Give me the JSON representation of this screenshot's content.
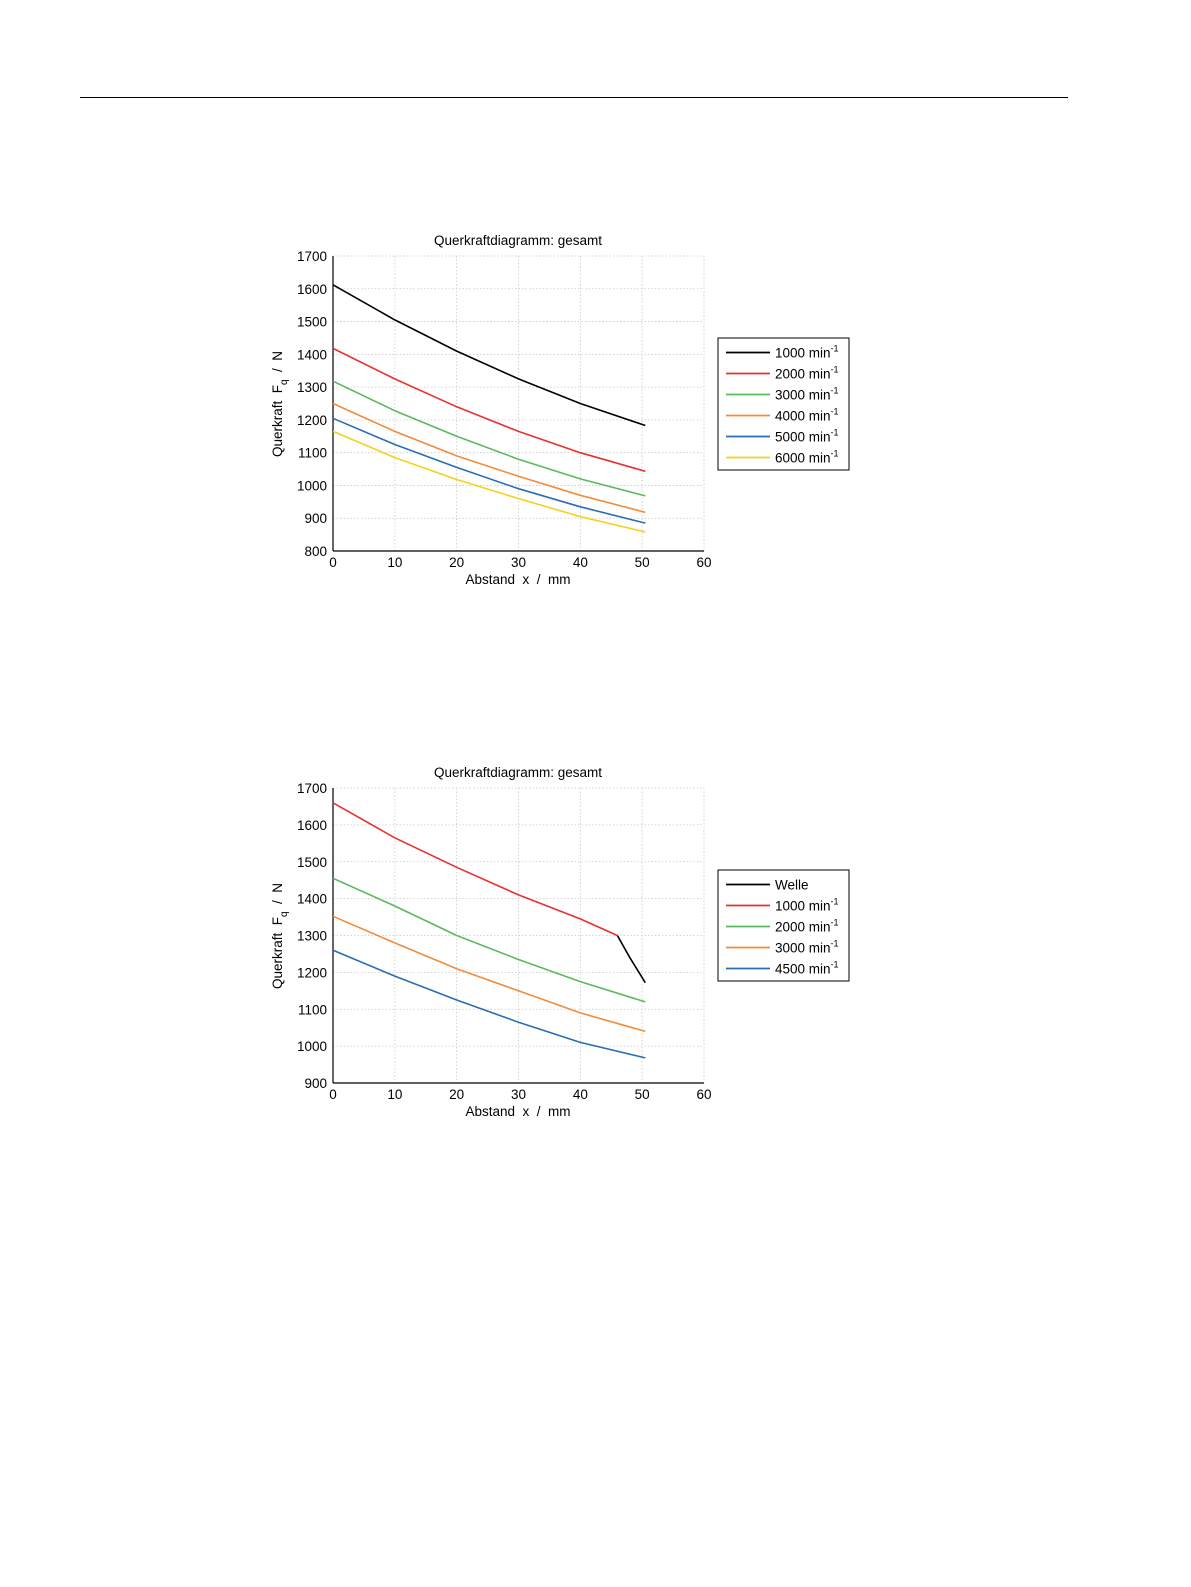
{
  "chart_data": [
    {
      "type": "line",
      "title": "Querkraftdiagramm: gesamt",
      "xlabel": "Abstand  x  /  mm",
      "ylabel_main": "Querkraft  F",
      "ylabel_sub": "q",
      "ylabel_unit": "  /  N",
      "xlim": [
        0,
        60
      ],
      "ylim": [
        800,
        1700
      ],
      "xticks": [
        0,
        10,
        20,
        30,
        40,
        50,
        60
      ],
      "yticks": [
        800,
        900,
        1000,
        1100,
        1200,
        1300,
        1400,
        1500,
        1600,
        1700
      ],
      "xtick_labels": [
        "0",
        "10",
        "20",
        "30",
        "40",
        "50",
        "60"
      ],
      "ytick_labels": [
        "800",
        "900",
        "1000",
        "1100",
        "1200",
        "1300",
        "1400",
        "1500",
        "1600",
        "1700"
      ],
      "grid": true,
      "legend_position": "right",
      "series": [
        {
          "name": "1000 min",
          "sup": "-1",
          "color": "#000000",
          "x": [
            0,
            10,
            20,
            30,
            40,
            50.5
          ],
          "y": [
            1612,
            1505,
            1410,
            1325,
            1250,
            1183
          ]
        },
        {
          "name": "2000 min",
          "sup": "-1",
          "color": "#e8302e",
          "x": [
            0,
            10,
            20,
            30,
            40,
            50.5
          ],
          "y": [
            1418,
            1325,
            1240,
            1165,
            1100,
            1043
          ]
        },
        {
          "name": "3000 min",
          "sup": "-1",
          "color": "#5cb85c",
          "x": [
            0,
            10,
            20,
            30,
            40,
            50.5
          ],
          "y": [
            1318,
            1228,
            1150,
            1080,
            1020,
            968
          ]
        },
        {
          "name": "4000 min",
          "sup": "-1",
          "color": "#f08c3a",
          "x": [
            0,
            10,
            20,
            30,
            40,
            50.5
          ],
          "y": [
            1250,
            1165,
            1090,
            1028,
            970,
            918
          ]
        },
        {
          "name": "5000 min",
          "sup": "-1",
          "color": "#2a6db5",
          "x": [
            0,
            10,
            20,
            30,
            40,
            50.5
          ],
          "y": [
            1205,
            1125,
            1055,
            990,
            935,
            885
          ]
        },
        {
          "name": "6000 min",
          "sup": "-1",
          "color": "#f2d21b",
          "x": [
            0,
            10,
            20,
            30,
            40,
            50.5
          ],
          "y": [
            1165,
            1085,
            1018,
            960,
            905,
            858
          ]
        }
      ]
    },
    {
      "type": "line",
      "title": "Querkraftdiagramm: gesamt",
      "xlabel": "Abstand  x  /  mm",
      "ylabel_main": "Querkraft  F",
      "ylabel_sub": "q",
      "ylabel_unit": "  /  N",
      "xlim": [
        0,
        60
      ],
      "ylim": [
        900,
        1700
      ],
      "xticks": [
        0,
        10,
        20,
        30,
        40,
        50,
        60
      ],
      "yticks": [
        900,
        1000,
        1100,
        1200,
        1300,
        1400,
        1500,
        1600,
        1700
      ],
      "xtick_labels": [
        "0",
        "10",
        "20",
        "30",
        "40",
        "50",
        "60"
      ],
      "ytick_labels": [
        "900",
        "1000",
        "1100",
        "1200",
        "1300",
        "1400",
        "1500",
        "1600",
        "1700"
      ],
      "grid": true,
      "legend_position": "right",
      "series": [
        {
          "name": "Welle",
          "sup": "",
          "color": "#000000",
          "x": [
            46,
            48,
            50.5
          ],
          "y": [
            1300,
            1240,
            1172
          ]
        },
        {
          "name": "1000 min",
          "sup": "-1",
          "color": "#e8302e",
          "x": [
            0,
            10,
            20,
            30,
            40,
            46
          ],
          "y": [
            1660,
            1565,
            1485,
            1410,
            1345,
            1300
          ]
        },
        {
          "name": "2000 min",
          "sup": "-1",
          "color": "#5cb85c",
          "x": [
            0,
            10,
            20,
            30,
            40,
            50.5
          ],
          "y": [
            1455,
            1380,
            1300,
            1235,
            1175,
            1120
          ]
        },
        {
          "name": "3000 min",
          "sup": "-1",
          "color": "#f08c3a",
          "x": [
            0,
            10,
            20,
            30,
            40,
            50.5
          ],
          "y": [
            1352,
            1280,
            1210,
            1150,
            1090,
            1040
          ]
        },
        {
          "name": "4500 min",
          "sup": "-1",
          "color": "#2a6db5",
          "x": [
            0,
            10,
            20,
            30,
            40,
            50.5
          ],
          "y": [
            1260,
            1190,
            1125,
            1065,
            1010,
            968
          ]
        }
      ]
    }
  ]
}
